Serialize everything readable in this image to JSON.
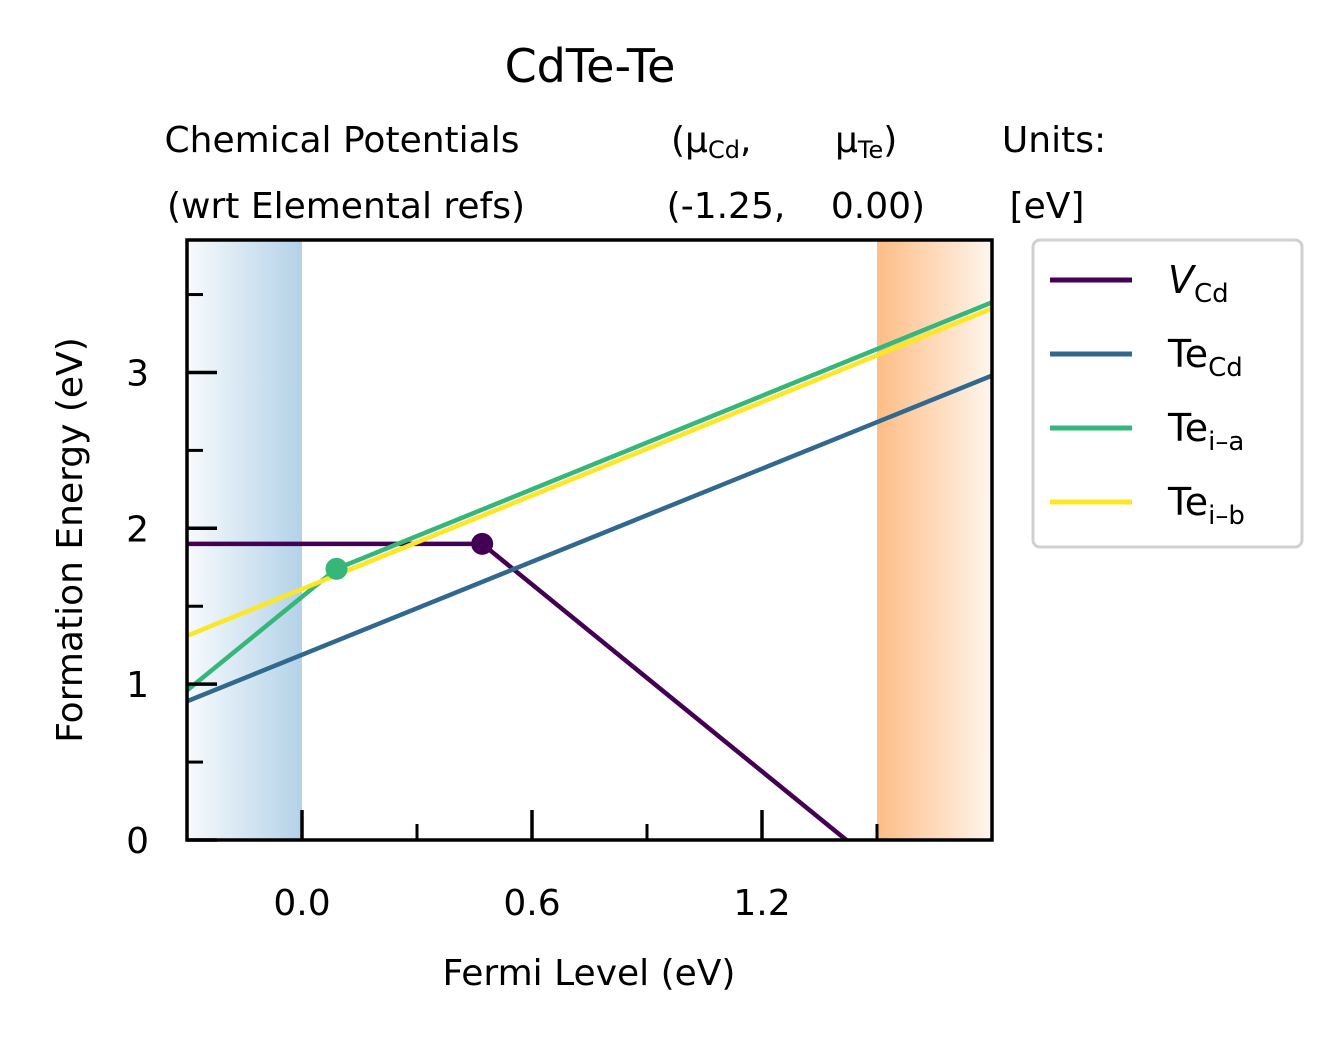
{
  "chart_data": {
    "type": "line",
    "title": "CdTe-Te",
    "header": {
      "left": [
        "Chemical Potentials",
        "(wrt Elemental refs)"
      ],
      "middle": {
        "row1": [
          {
            "pre": "(μ",
            "sub": "Cd",
            "post": ","
          },
          {
            "pre": "μ",
            "sub": "Te",
            "post": ")"
          }
        ],
        "row2": [
          "(-1.25,",
          "0.00)"
        ]
      },
      "right": [
        "Units:",
        "[eV]"
      ]
    },
    "xlabel": "Fermi Level (eV)",
    "ylabel": "Formation Energy (eV)",
    "xlim": [
      -0.3,
      1.8
    ],
    "ylim": [
      0,
      3.85
    ],
    "x_major_ticks": [
      0.0,
      0.6,
      1.2
    ],
    "x_tick_labels": [
      "0.0",
      "0.6",
      "1.2"
    ],
    "x_minor_ticks": [
      0.3,
      0.9,
      1.5
    ],
    "y_major_ticks": [
      0,
      1,
      2,
      3
    ],
    "y_tick_labels": [
      "0",
      "1",
      "2",
      "3"
    ],
    "y_minor_ticks": [
      0.5,
      1.5,
      2.5,
      3.5
    ],
    "valence_band_region": {
      "from": -0.3,
      "to": 0.0,
      "color": "#b3d2e8"
    },
    "conduction_band_region": {
      "from": 1.5,
      "to": 1.8,
      "color": "#fdbd86"
    },
    "legend_position": "outside-right",
    "series": [
      {
        "name": "V",
        "name_sub": "Cd",
        "italic": true,
        "color": "#440154",
        "points": [
          [
            -0.3,
            1.9
          ],
          [
            0.47,
            1.9
          ],
          [
            1.42,
            0.0
          ]
        ]
      },
      {
        "name": "Te",
        "name_sub": "Cd",
        "italic": false,
        "color": "#31688e",
        "points": [
          [
            -0.3,
            0.89
          ],
          [
            1.8,
            2.98
          ]
        ]
      },
      {
        "name": "Te",
        "name_sub": "i–a",
        "italic": false,
        "color": "#35b779",
        "points": [
          [
            -0.3,
            0.96
          ],
          [
            0.09,
            1.74
          ],
          [
            1.8,
            3.45
          ]
        ]
      },
      {
        "name": "Te",
        "name_sub": "i–b",
        "italic": false,
        "color": "#fde725",
        "points": [
          [
            -0.3,
            1.31
          ],
          [
            1.8,
            3.41
          ]
        ]
      }
    ],
    "transition_markers": [
      {
        "series": "V",
        "x": 0.47,
        "y": 1.9,
        "color": "#440154"
      },
      {
        "series": "Te",
        "x": 0.09,
        "y": 1.74,
        "color": "#35b779"
      }
    ]
  }
}
